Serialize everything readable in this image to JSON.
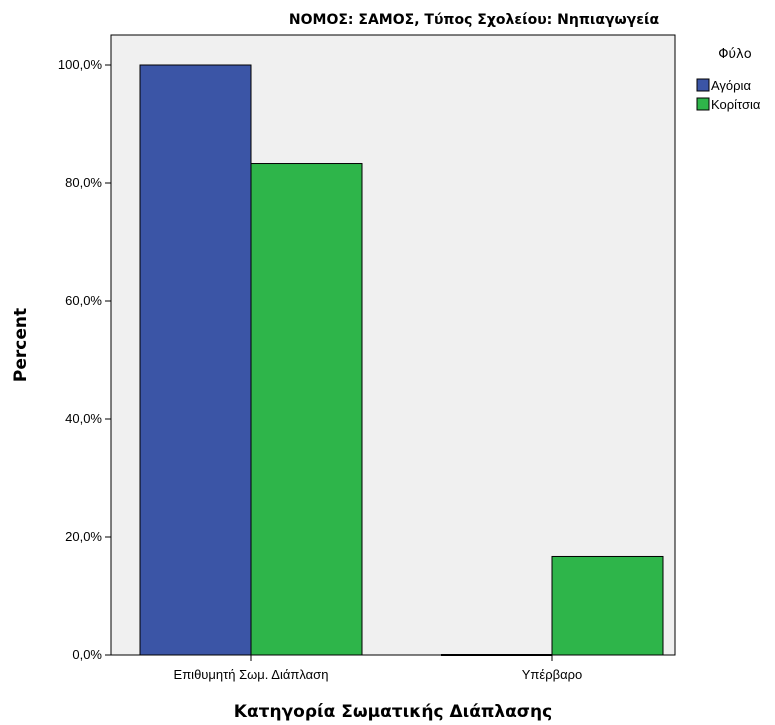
{
  "chart_data": {
    "type": "bar",
    "title": "ΝΟΜΟΣ: ΣΑΜΟΣ, Τύπος Σχολείου: Νηπιαγωγεία",
    "xlabel": "Κατηγορία Σωματικής Διάπλασης",
    "ylabel": "Percent",
    "categories": [
      "Επιθυμητή Σωμ. Διάπλαση",
      "Υπέρβαρο"
    ],
    "series": [
      {
        "name": "Αγόρια",
        "values": [
          100.0,
          0.0
        ],
        "color": "#3b55a6"
      },
      {
        "name": "Κορίτσια",
        "values": [
          83.3,
          16.7
        ],
        "color": "#2eb54a"
      }
    ],
    "ylim": [
      0,
      105
    ],
    "yticks": [
      0,
      20,
      40,
      60,
      80,
      100
    ],
    "ytick_labels": [
      "0,0%",
      "20,0%",
      "40,0%",
      "60,0%",
      "80,0%",
      "100,0%"
    ],
    "legend_title": "Φύλο",
    "legend_position": "top-right",
    "plot_background": "#f0f0f0",
    "grid": false
  }
}
